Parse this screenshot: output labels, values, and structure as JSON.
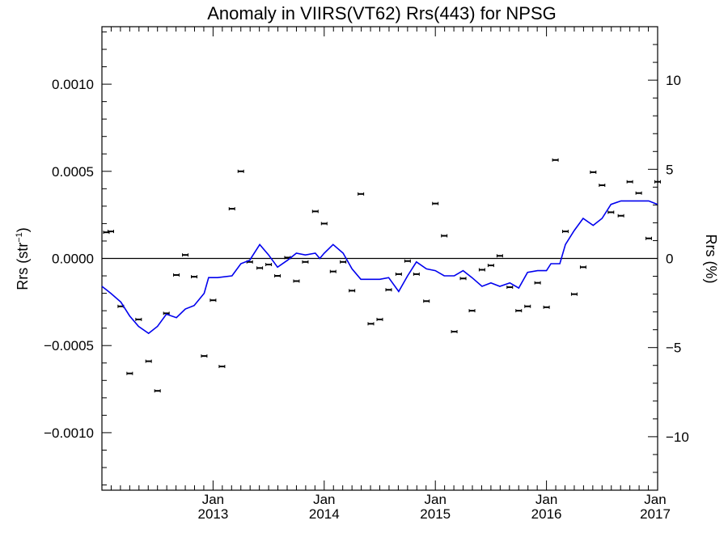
{
  "chart_data": {
    "type": "scatter",
    "title": "Anomaly in VIIRS(VT62) Rrs(443) for NPSG",
    "ylabel_left": {
      "base": "Rrs (str",
      "sup": "−1",
      "close": ")"
    },
    "ylabel_right": "Rrs (%)",
    "xlim": [
      2012.0,
      2017.0
    ],
    "ylim_left": [
      -0.00133,
      0.00133
    ],
    "ylim_right": [
      -13.0,
      13.0
    ],
    "x_ticks": [
      {
        "value": 2013.0,
        "month": "Jan",
        "year": "2013"
      },
      {
        "value": 2014.0,
        "month": "Jan",
        "year": "2014"
      },
      {
        "value": 2015.0,
        "month": "Jan",
        "year": "2015"
      },
      {
        "value": 2016.0,
        "month": "Jan",
        "year": "2016"
      },
      {
        "value": 2017.0,
        "month": "Jan",
        "year": "2017"
      }
    ],
    "y_ticks_left": [
      {
        "value": 0.001,
        "label": "0.0010"
      },
      {
        "value": 0.0005,
        "label": "0.0005"
      },
      {
        "value": 0.0,
        "label": "0.0000"
      },
      {
        "value": -0.0005,
        "label": "−0.0005"
      },
      {
        "value": -0.001,
        "label": "−0.0010"
      }
    ],
    "y_ticks_right": [
      {
        "value": 10,
        "label": "10"
      },
      {
        "value": 5,
        "label": "5"
      },
      {
        "value": 0,
        "label": "0"
      },
      {
        "value": -5,
        "label": "−5"
      },
      {
        "value": -10,
        "label": "−10"
      }
    ],
    "zero_line": true,
    "series": [
      {
        "type": "scatter_errorbar",
        "axis": "left",
        "color": "#000000",
        "points": [
          [
            2012.04,
            0.00015
          ],
          [
            2012.08,
            0.000155
          ],
          [
            2012.17,
            -0.000275
          ],
          [
            2012.25,
            -0.00066
          ],
          [
            2012.33,
            -0.00035
          ],
          [
            2012.42,
            -0.00059
          ],
          [
            2012.5,
            -0.00076
          ],
          [
            2012.58,
            -0.000315
          ],
          [
            2012.67,
            -9.5e-05
          ],
          [
            2012.75,
            2e-05
          ],
          [
            2012.83,
            -0.000105
          ],
          [
            2012.92,
            -0.00056
          ],
          [
            2013.0,
            -0.00024
          ],
          [
            2013.08,
            -0.00062
          ],
          [
            2013.17,
            0.000285
          ],
          [
            2013.25,
            0.0005
          ],
          [
            2013.33,
            -2e-05
          ],
          [
            2013.42,
            -5.5e-05
          ],
          [
            2013.5,
            -3.5e-05
          ],
          [
            2013.58,
            -0.0001
          ],
          [
            2013.67,
            5e-06
          ],
          [
            2013.75,
            -0.00013
          ],
          [
            2013.83,
            -2e-05
          ],
          [
            2013.92,
            0.00027
          ],
          [
            2014.0,
            0.0002
          ],
          [
            2014.08,
            -7.5e-05
          ],
          [
            2014.17,
            -2e-05
          ],
          [
            2014.25,
            -0.000185
          ],
          [
            2014.33,
            0.00037
          ],
          [
            2014.42,
            -0.000375
          ],
          [
            2014.5,
            -0.00035
          ],
          [
            2014.58,
            -0.00018
          ],
          [
            2014.67,
            -9e-05
          ],
          [
            2014.75,
            -1.5e-05
          ],
          [
            2014.83,
            -9e-05
          ],
          [
            2014.92,
            -0.000245
          ],
          [
            2015.0,
            0.000315
          ],
          [
            2015.08,
            0.00013
          ],
          [
            2015.17,
            -0.00042
          ],
          [
            2015.25,
            -0.000115
          ],
          [
            2015.33,
            -0.0003
          ],
          [
            2015.42,
            -6.5e-05
          ],
          [
            2015.5,
            -4e-05
          ],
          [
            2015.58,
            1.5e-05
          ],
          [
            2015.67,
            -0.000165
          ],
          [
            2015.75,
            -0.0003
          ],
          [
            2015.83,
            -0.000275
          ],
          [
            2015.92,
            -0.00014
          ],
          [
            2016.0,
            -0.00028
          ],
          [
            2016.08,
            0.000565
          ],
          [
            2016.17,
            0.000155
          ],
          [
            2016.25,
            -0.000205
          ],
          [
            2016.33,
            -5e-05
          ],
          [
            2016.42,
            0.000495
          ],
          [
            2016.5,
            0.00042
          ],
          [
            2016.58,
            0.000265
          ],
          [
            2016.67,
            0.000245
          ],
          [
            2016.75,
            0.00044
          ],
          [
            2016.83,
            0.000375
          ],
          [
            2016.92,
            0.000115
          ],
          [
            2017.0,
            0.00044
          ]
        ]
      },
      {
        "type": "line",
        "axis": "left",
        "color": "#0000ee",
        "points": [
          [
            2012.0,
            -0.00016
          ],
          [
            2012.04,
            -0.00018
          ],
          [
            2012.08,
            -0.0002
          ],
          [
            2012.17,
            -0.00025
          ],
          [
            2012.25,
            -0.00033
          ],
          [
            2012.33,
            -0.00039
          ],
          [
            2012.42,
            -0.00043
          ],
          [
            2012.5,
            -0.00039
          ],
          [
            2012.58,
            -0.00032
          ],
          [
            2012.67,
            -0.00034
          ],
          [
            2012.75,
            -0.00029
          ],
          [
            2012.83,
            -0.00027
          ],
          [
            2012.92,
            -0.0002
          ],
          [
            2012.96,
            -0.00011
          ],
          [
            2013.04,
            -0.00011
          ],
          [
            2013.17,
            -0.0001
          ],
          [
            2013.25,
            -3e-05
          ],
          [
            2013.33,
            -1e-05
          ],
          [
            2013.42,
            8e-05
          ],
          [
            2013.5,
            2e-05
          ],
          [
            2013.58,
            -5e-05
          ],
          [
            2013.67,
            -1e-05
          ],
          [
            2013.75,
            3e-05
          ],
          [
            2013.83,
            2e-05
          ],
          [
            2013.92,
            3e-05
          ],
          [
            2013.96,
            0.0
          ],
          [
            2014.0,
            3e-05
          ],
          [
            2014.08,
            8e-05
          ],
          [
            2014.17,
            3e-05
          ],
          [
            2014.25,
            -6e-05
          ],
          [
            2014.33,
            -0.00012
          ],
          [
            2014.42,
            -0.00012
          ],
          [
            2014.5,
            -0.00012
          ],
          [
            2014.58,
            -0.00011
          ],
          [
            2014.67,
            -0.00019
          ],
          [
            2014.75,
            -0.0001
          ],
          [
            2014.83,
            -2e-05
          ],
          [
            2014.92,
            -6e-05
          ],
          [
            2015.0,
            -7e-05
          ],
          [
            2015.08,
            -0.0001
          ],
          [
            2015.17,
            -0.0001
          ],
          [
            2015.25,
            -7e-05
          ],
          [
            2015.33,
            -0.00011
          ],
          [
            2015.42,
            -0.00016
          ],
          [
            2015.5,
            -0.00014
          ],
          [
            2015.58,
            -0.00016
          ],
          [
            2015.67,
            -0.00014
          ],
          [
            2015.75,
            -0.00017
          ],
          [
            2015.83,
            -8e-05
          ],
          [
            2015.92,
            -7e-05
          ],
          [
            2016.0,
            -7e-05
          ],
          [
            2016.04,
            -3e-05
          ],
          [
            2016.12,
            -3e-05
          ],
          [
            2016.17,
            8e-05
          ],
          [
            2016.25,
            0.00016
          ],
          [
            2016.33,
            0.00023
          ],
          [
            2016.42,
            0.00019
          ],
          [
            2016.5,
            0.00023
          ],
          [
            2016.58,
            0.00031
          ],
          [
            2016.67,
            0.00033
          ],
          [
            2016.75,
            0.00033
          ],
          [
            2016.83,
            0.00033
          ],
          [
            2016.92,
            0.00033
          ],
          [
            2017.0,
            0.00031
          ]
        ]
      }
    ]
  }
}
